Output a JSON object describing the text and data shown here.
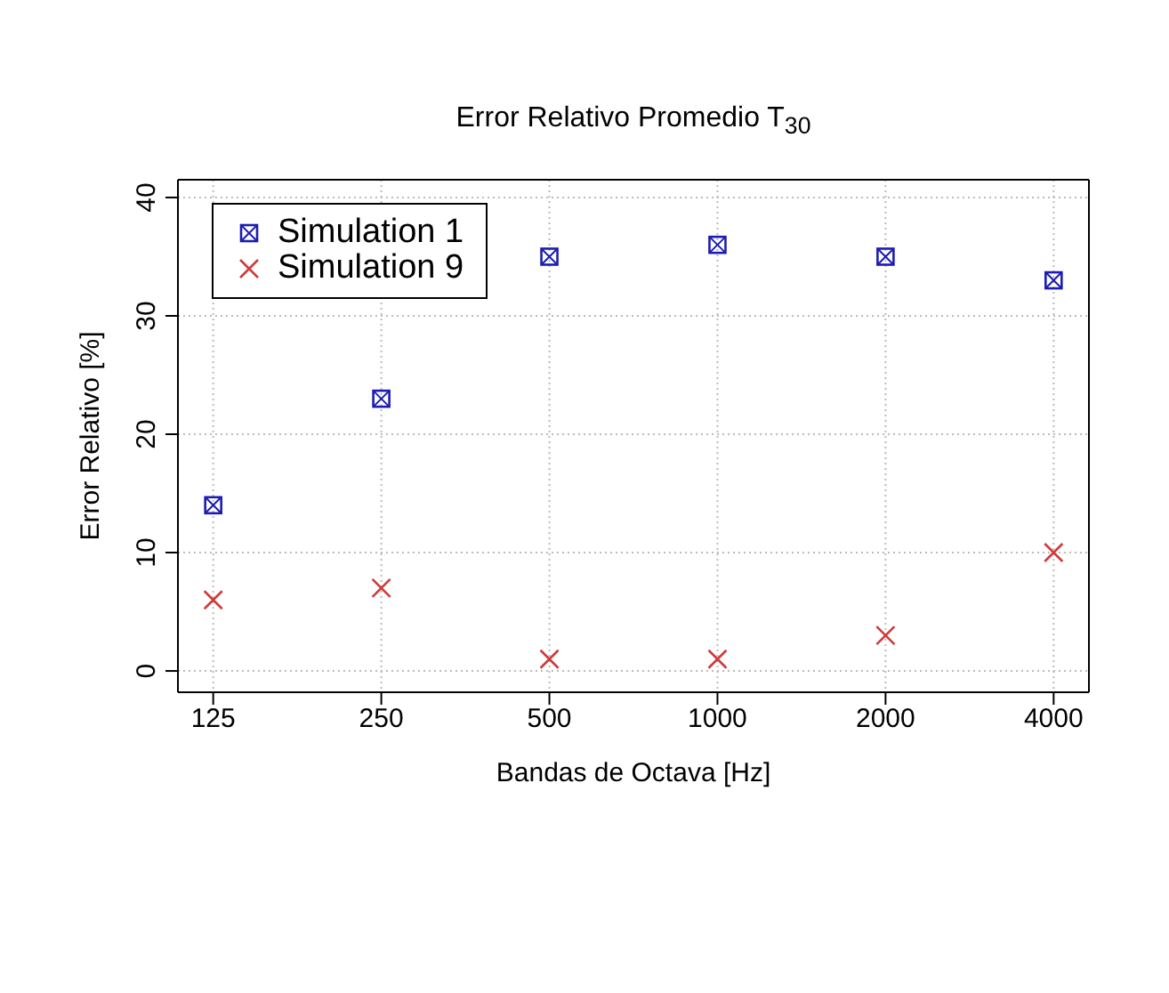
{
  "chart_data": {
    "type": "scatter",
    "title": "Error Relativo Promedio T$_{30}$",
    "xlabel": "Bandas de Octava [Hz]",
    "ylabel": "Error Relativo [%]",
    "categories": [
      "125",
      "250",
      "500",
      "1000",
      "2000",
      "4000"
    ],
    "series": [
      {
        "name": "Simulation 1",
        "color": "#1c1cb4",
        "marker": "square",
        "values": [
          14,
          23,
          35,
          36,
          35,
          33
        ]
      },
      {
        "name": "Simulation 9",
        "color": "#d03a3a",
        "marker": "cross",
        "values": [
          6,
          7,
          1,
          1,
          3,
          10
        ]
      }
    ],
    "ylim": [
      -1.8,
      41.5
    ],
    "yticks": [
      0,
      10,
      20,
      30,
      40
    ],
    "grid": true,
    "legend": "top left"
  }
}
